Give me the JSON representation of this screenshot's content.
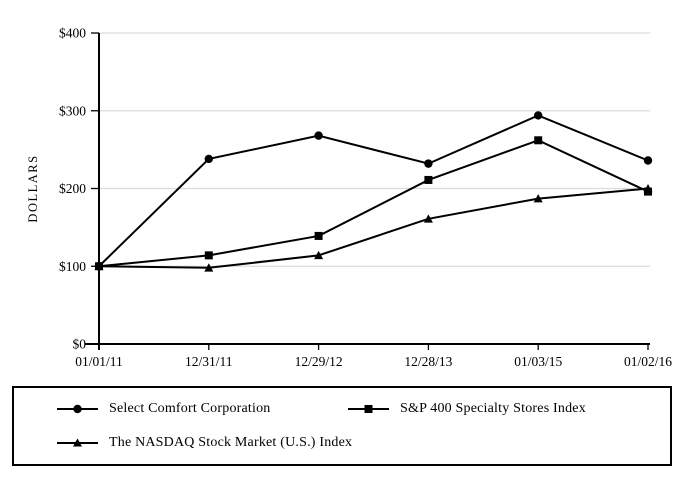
{
  "chart_data": {
    "type": "line",
    "title": "",
    "xlabel": "",
    "ylabel": "DOLLARS",
    "categories": [
      "01/01/11",
      "12/31/11",
      "12/29/12",
      "12/28/13",
      "01/03/15",
      "01/02/16"
    ],
    "ylim": [
      0,
      400
    ],
    "yticks": {
      "values": [
        0,
        100,
        200,
        300,
        400
      ],
      "labels": [
        "$0",
        "$100",
        "$200",
        "$300",
        "$400"
      ]
    },
    "grid": "horizontal",
    "legend_position": "bottom-box",
    "series": [
      {
        "name": "Select Comfort Corporation",
        "marker": "circle",
        "values": [
          100,
          238,
          268,
          232,
          294,
          236
        ]
      },
      {
        "name": "S&P 400 Specialty Stores Index",
        "marker": "square",
        "values": [
          100,
          114,
          139,
          211,
          262,
          196
        ]
      },
      {
        "name": "The NASDAQ Stock Market (U.S.) Index",
        "marker": "triangle",
        "values": [
          100,
          98,
          114,
          161,
          187,
          200
        ]
      }
    ],
    "colors": {
      "line": "#000000",
      "grid": "#dcdcdc",
      "background": "#ffffff"
    }
  }
}
